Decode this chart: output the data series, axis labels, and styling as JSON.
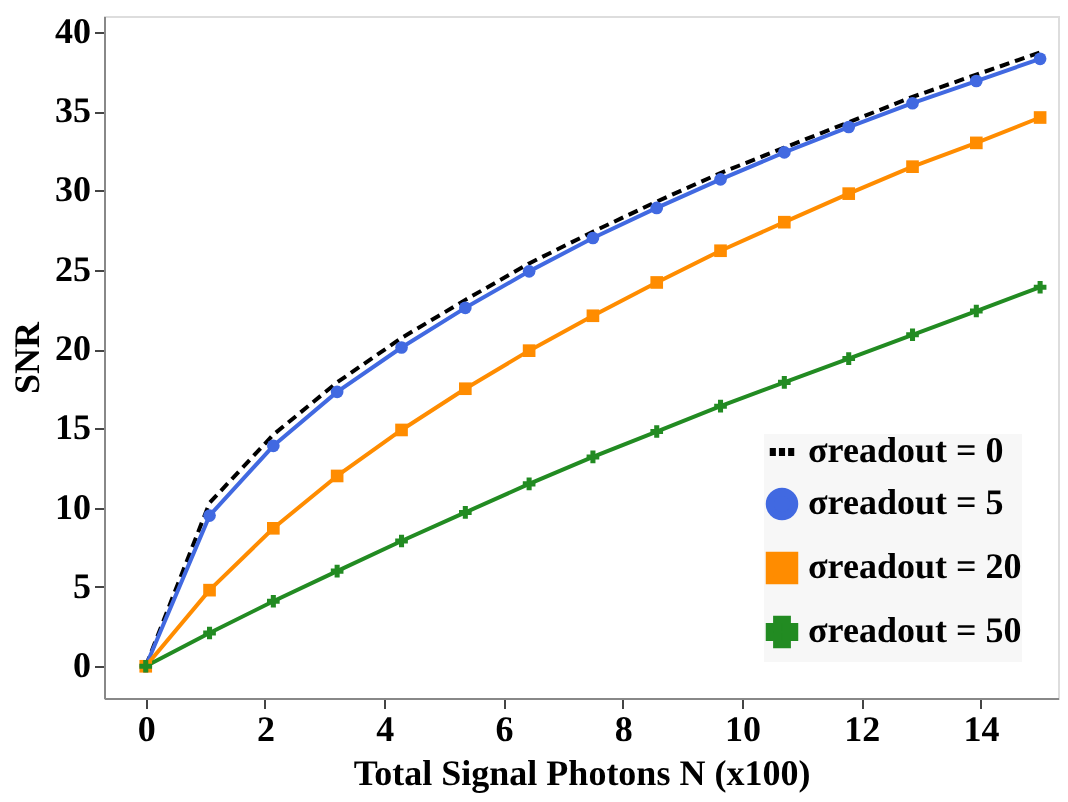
{
  "chart_data": {
    "type": "line",
    "xlabel": "Total Signal Photons N (x100)",
    "ylabel": "SNR",
    "x": [
      0,
      1.07,
      2.14,
      3.21,
      4.29,
      5.36,
      6.43,
      7.5,
      8.57,
      9.64,
      10.71,
      11.79,
      12.86,
      13.93,
      15
    ],
    "series": [
      {
        "name": "σreadout = 0",
        "color": "#000000",
        "line_style": "dashed",
        "marker": "none",
        "values": [
          0,
          10.3,
          14.6,
          17.9,
          20.7,
          23.1,
          25.4,
          27.4,
          29.3,
          31.1,
          32.7,
          34.3,
          35.9,
          37.3,
          38.7
        ]
      },
      {
        "name": "σreadout = 5",
        "color": "#4169e1",
        "line_style": "solid",
        "marker": "circle",
        "values": [
          0,
          9.5,
          13.9,
          17.3,
          20.1,
          22.6,
          24.9,
          27.0,
          28.9,
          30.7,
          32.4,
          34.0,
          35.5,
          36.9,
          38.3
        ]
      },
      {
        "name": "σreadout = 20",
        "color": "#ff8c00",
        "line_style": "solid",
        "marker": "square",
        "values": [
          0,
          4.8,
          8.7,
          12.0,
          14.9,
          17.5,
          19.9,
          22.1,
          24.2,
          26.2,
          28.0,
          29.8,
          31.5,
          33.0,
          34.6
        ]
      },
      {
        "name": "σreadout = 50",
        "color": "#228b22",
        "line_style": "solid",
        "marker": "cross",
        "values": [
          0,
          2.1,
          4.1,
          6.0,
          7.9,
          9.7,
          11.5,
          13.2,
          14.8,
          16.4,
          17.9,
          19.4,
          20.9,
          22.4,
          23.9
        ]
      }
    ],
    "xlim": [
      -0.7,
      15.3
    ],
    "ylim": [
      -2,
      41
    ],
    "xticks": [
      0,
      2,
      4,
      6,
      8,
      10,
      12,
      14
    ],
    "yticks": [
      0,
      5,
      10,
      15,
      20,
      25,
      30,
      35,
      40
    ],
    "grid": false,
    "legend": "bottom right"
  }
}
